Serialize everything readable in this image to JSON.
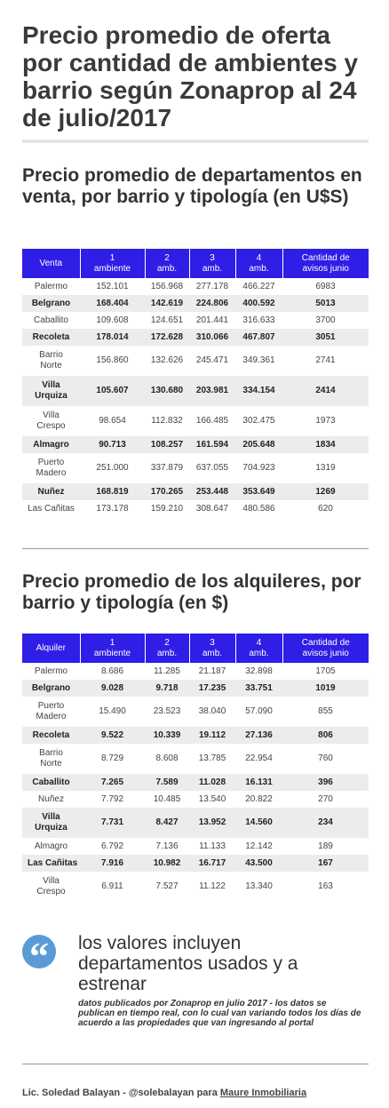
{
  "header": {
    "title": "Precio promedio de oferta por cantidad de ambientes y barrio según Zonaprop al 24 de julio/2017"
  },
  "sections": [
    {
      "title": "Precio promedio de departamentos en venta, por barrio y tipología (en U$S)",
      "table": {
        "columns": [
          "Venta",
          "1\nambiente",
          "2\namb.",
          "3\namb.",
          "4\namb.",
          "Cantidad de\navisos junio"
        ],
        "rows": [
          [
            "Palermo",
            "152.101",
            "156.968",
            "277.178",
            "466.227",
            "6983"
          ],
          [
            "Belgrano",
            "168.404",
            "142.619",
            "224.806",
            "400.592",
            "5013"
          ],
          [
            "Caballito",
            "109.608",
            "124.651",
            "201.441",
            "316.633",
            "3700"
          ],
          [
            "Recoleta",
            "178.014",
            "172.628",
            "310.066",
            "467.807",
            "3051"
          ],
          [
            "Barrio Norte",
            "156.860",
            "132.626",
            "245.471",
            "349.361",
            "2741"
          ],
          [
            "Villa Urquiza",
            "105.607",
            "130.680",
            "203.981",
            "334.154",
            "2414"
          ],
          [
            "Villa Crespo",
            "98.654",
            "112.832",
            "166.485",
            "302.475",
            "1973"
          ],
          [
            "Almagro",
            "90.713",
            "108.257",
            "161.594",
            "205.648",
            "1834"
          ],
          [
            "Puerto Madero",
            "251.000",
            "337.879",
            "637.055",
            "704.923",
            "1319"
          ],
          [
            "Nuñez",
            "168.819",
            "170.265",
            "253.448",
            "353.649",
            "1269"
          ],
          [
            "Las Cañitas",
            "173.178",
            "159.210",
            "308.647",
            "480.586",
            "620"
          ]
        ]
      }
    },
    {
      "title": "Precio promedio de los alquileres, por barrio y tipología (en $)",
      "table": {
        "columns": [
          "Alquiler",
          "1\nambiente",
          "2\namb.",
          "3\namb.",
          "4\namb.",
          "Cantidad de\navisos junio"
        ],
        "rows": [
          [
            "Palermo",
            "8.686",
            "11.285",
            "21.187",
            "32.898",
            "1705"
          ],
          [
            "Belgrano",
            "9.028",
            "9.718",
            "17.235",
            "33.751",
            "1019"
          ],
          [
            "Puerto Madero",
            "15.490",
            "23.523",
            "38.040",
            "57.090",
            "855"
          ],
          [
            "Recoleta",
            "9.522",
            "10.339",
            "19.112",
            "27.136",
            "806"
          ],
          [
            "Barrio Norte",
            "8.729",
            "8.608",
            "13.785",
            "22.954",
            "760"
          ],
          [
            "Caballito",
            "7.265",
            "7.589",
            "11.028",
            "16.131",
            "396"
          ],
          [
            "Nuñez",
            "7.792",
            "10.485",
            "13.540",
            "20.822",
            "270"
          ],
          [
            "Villa Urquiza",
            "7.731",
            "8.427",
            "13.952",
            "14.560",
            "234"
          ],
          [
            "Almagro",
            "6.792",
            "7.136",
            "11.133",
            "12.142",
            "189"
          ],
          [
            "Las Cañitas",
            "7.916",
            "10.982",
            "16.717",
            "43.500",
            "167"
          ],
          [
            "Villa Crespo",
            "6.911",
            "7.527",
            "11.122",
            "13.340",
            "163"
          ]
        ]
      }
    }
  ],
  "quote": {
    "mark": "“",
    "text": "los valores incluyen departamentos usados y a estrenar",
    "note": "datos publicados por Zonaprop en julio 2017  - los datos se publican en tiempo real, con lo cual van variando todos los días de acuerdo a las propiedades que van ingresando al portal"
  },
  "footer": {
    "text": "Lic. Soledad Balayan  - @solebalayan para ",
    "link": "Maure Inmobiliaria"
  }
}
